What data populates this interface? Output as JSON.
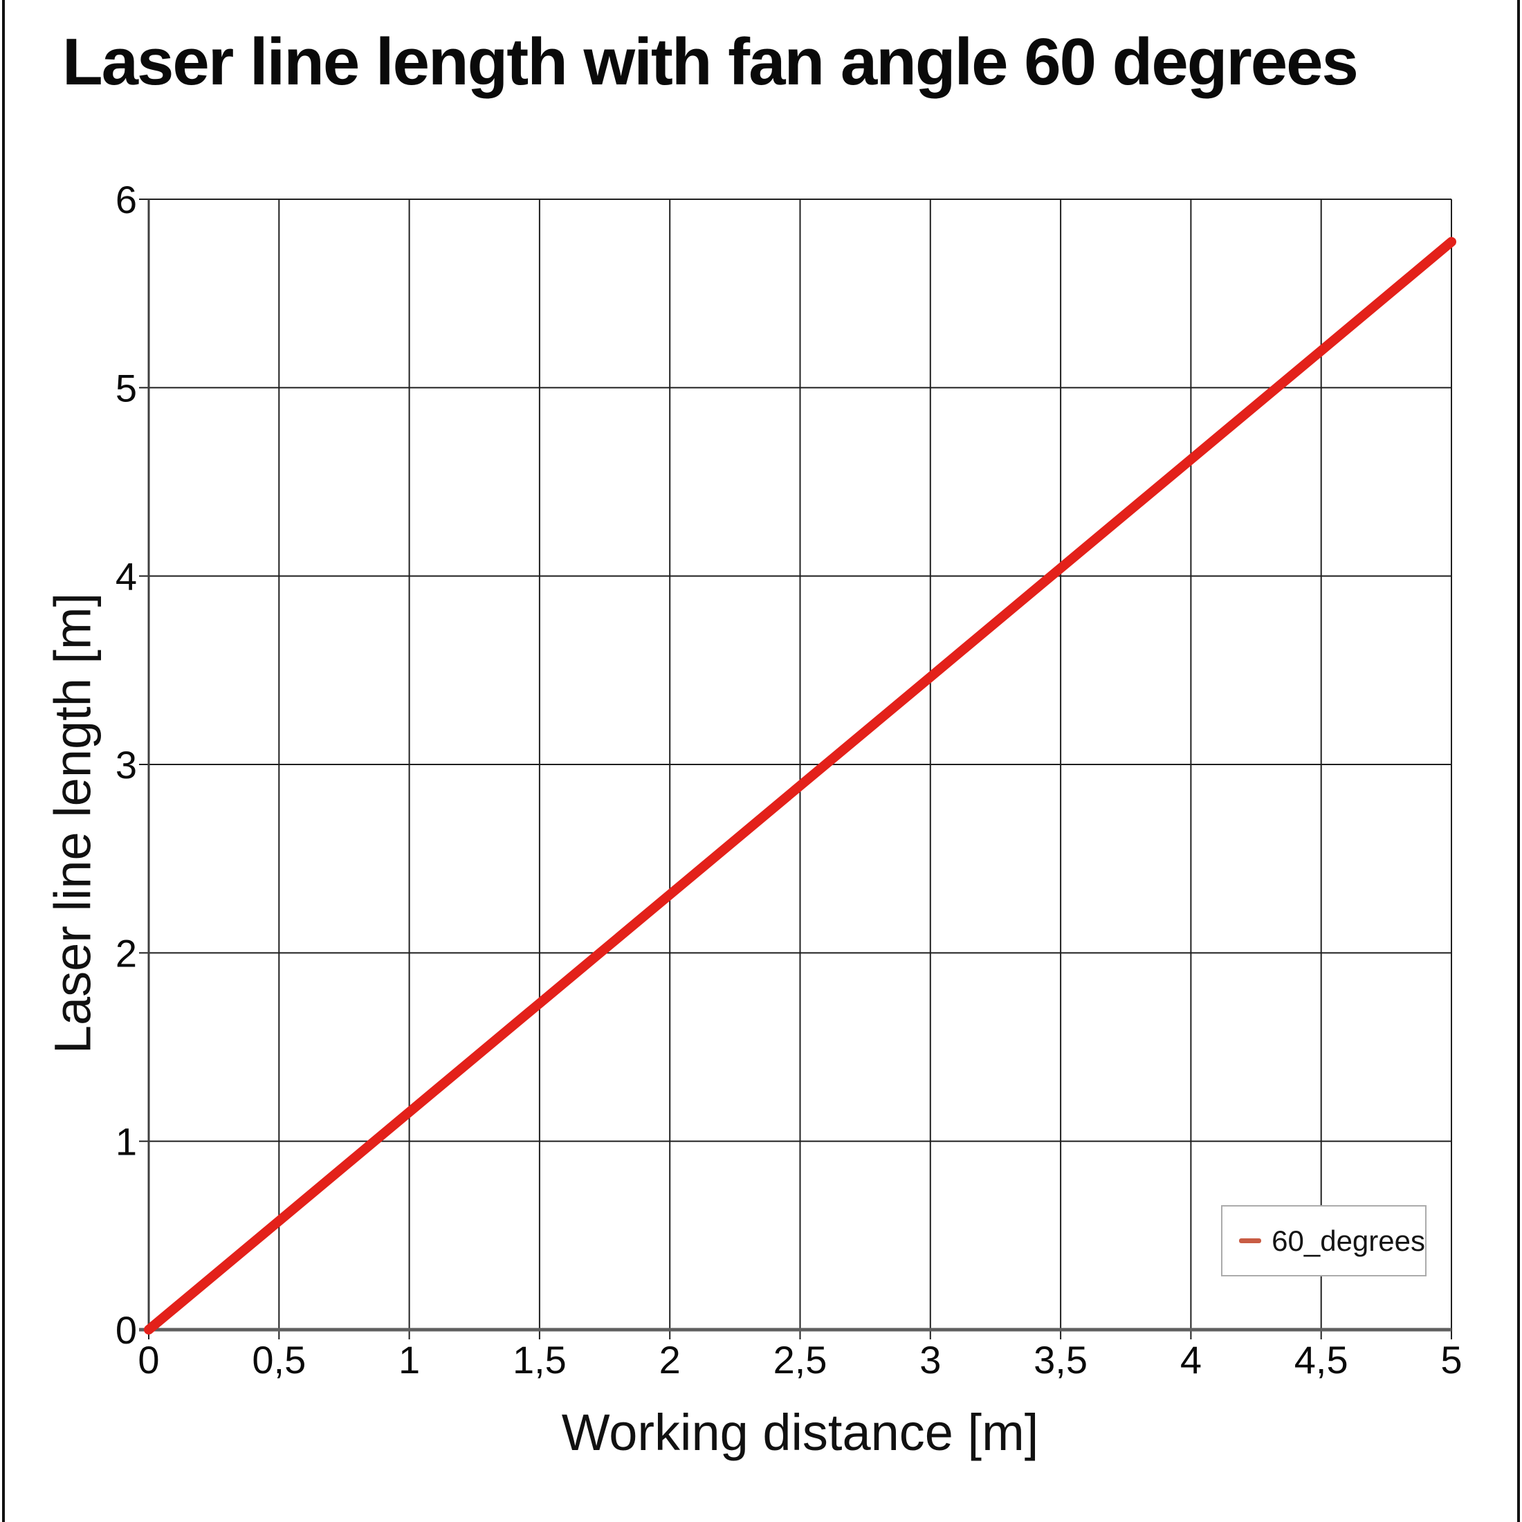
{
  "title": "Laser line length with fan angle 60 degrees",
  "colors": {
    "series_line": "#e3211a",
    "legend_marker": "#c85c44",
    "grid": "#1f1f1f",
    "x_axis": "#5f5f5f",
    "y_axis": "#3f3f3f",
    "legend_border": "#ababab",
    "frame": "#111111"
  },
  "legend": {
    "label": "60_degrees"
  },
  "chart_data": {
    "type": "line",
    "title": "Laser line length with fan angle 60 degrees",
    "xlabel": "Working distance [m]",
    "ylabel": "Laser line length [m]",
    "xlim": [
      0,
      5
    ],
    "ylim": [
      0,
      6
    ],
    "grid": true,
    "legend_position": "bottom-right",
    "x_tick_labels": [
      "0",
      "0,5",
      "1",
      "1,5",
      "2",
      "2,5",
      "3",
      "3,5",
      "4",
      "4,5",
      "5"
    ],
    "x_tick_values": [
      0,
      0.5,
      1,
      1.5,
      2,
      2.5,
      3,
      3.5,
      4,
      4.5,
      5
    ],
    "y_tick_labels": [
      "0",
      "1",
      "2",
      "3",
      "4",
      "5",
      "6"
    ],
    "y_tick_values": [
      0,
      1,
      2,
      3,
      4,
      5,
      6
    ],
    "series": [
      {
        "name": "60_degrees",
        "x": [
          0,
          0.5,
          1,
          1.5,
          2,
          2.5,
          3,
          3.5,
          4,
          4.5,
          5
        ],
        "values": [
          0,
          0.577,
          1.155,
          1.732,
          2.309,
          2.887,
          3.464,
          4.042,
          4.619,
          5.196,
          5.774
        ]
      }
    ]
  }
}
